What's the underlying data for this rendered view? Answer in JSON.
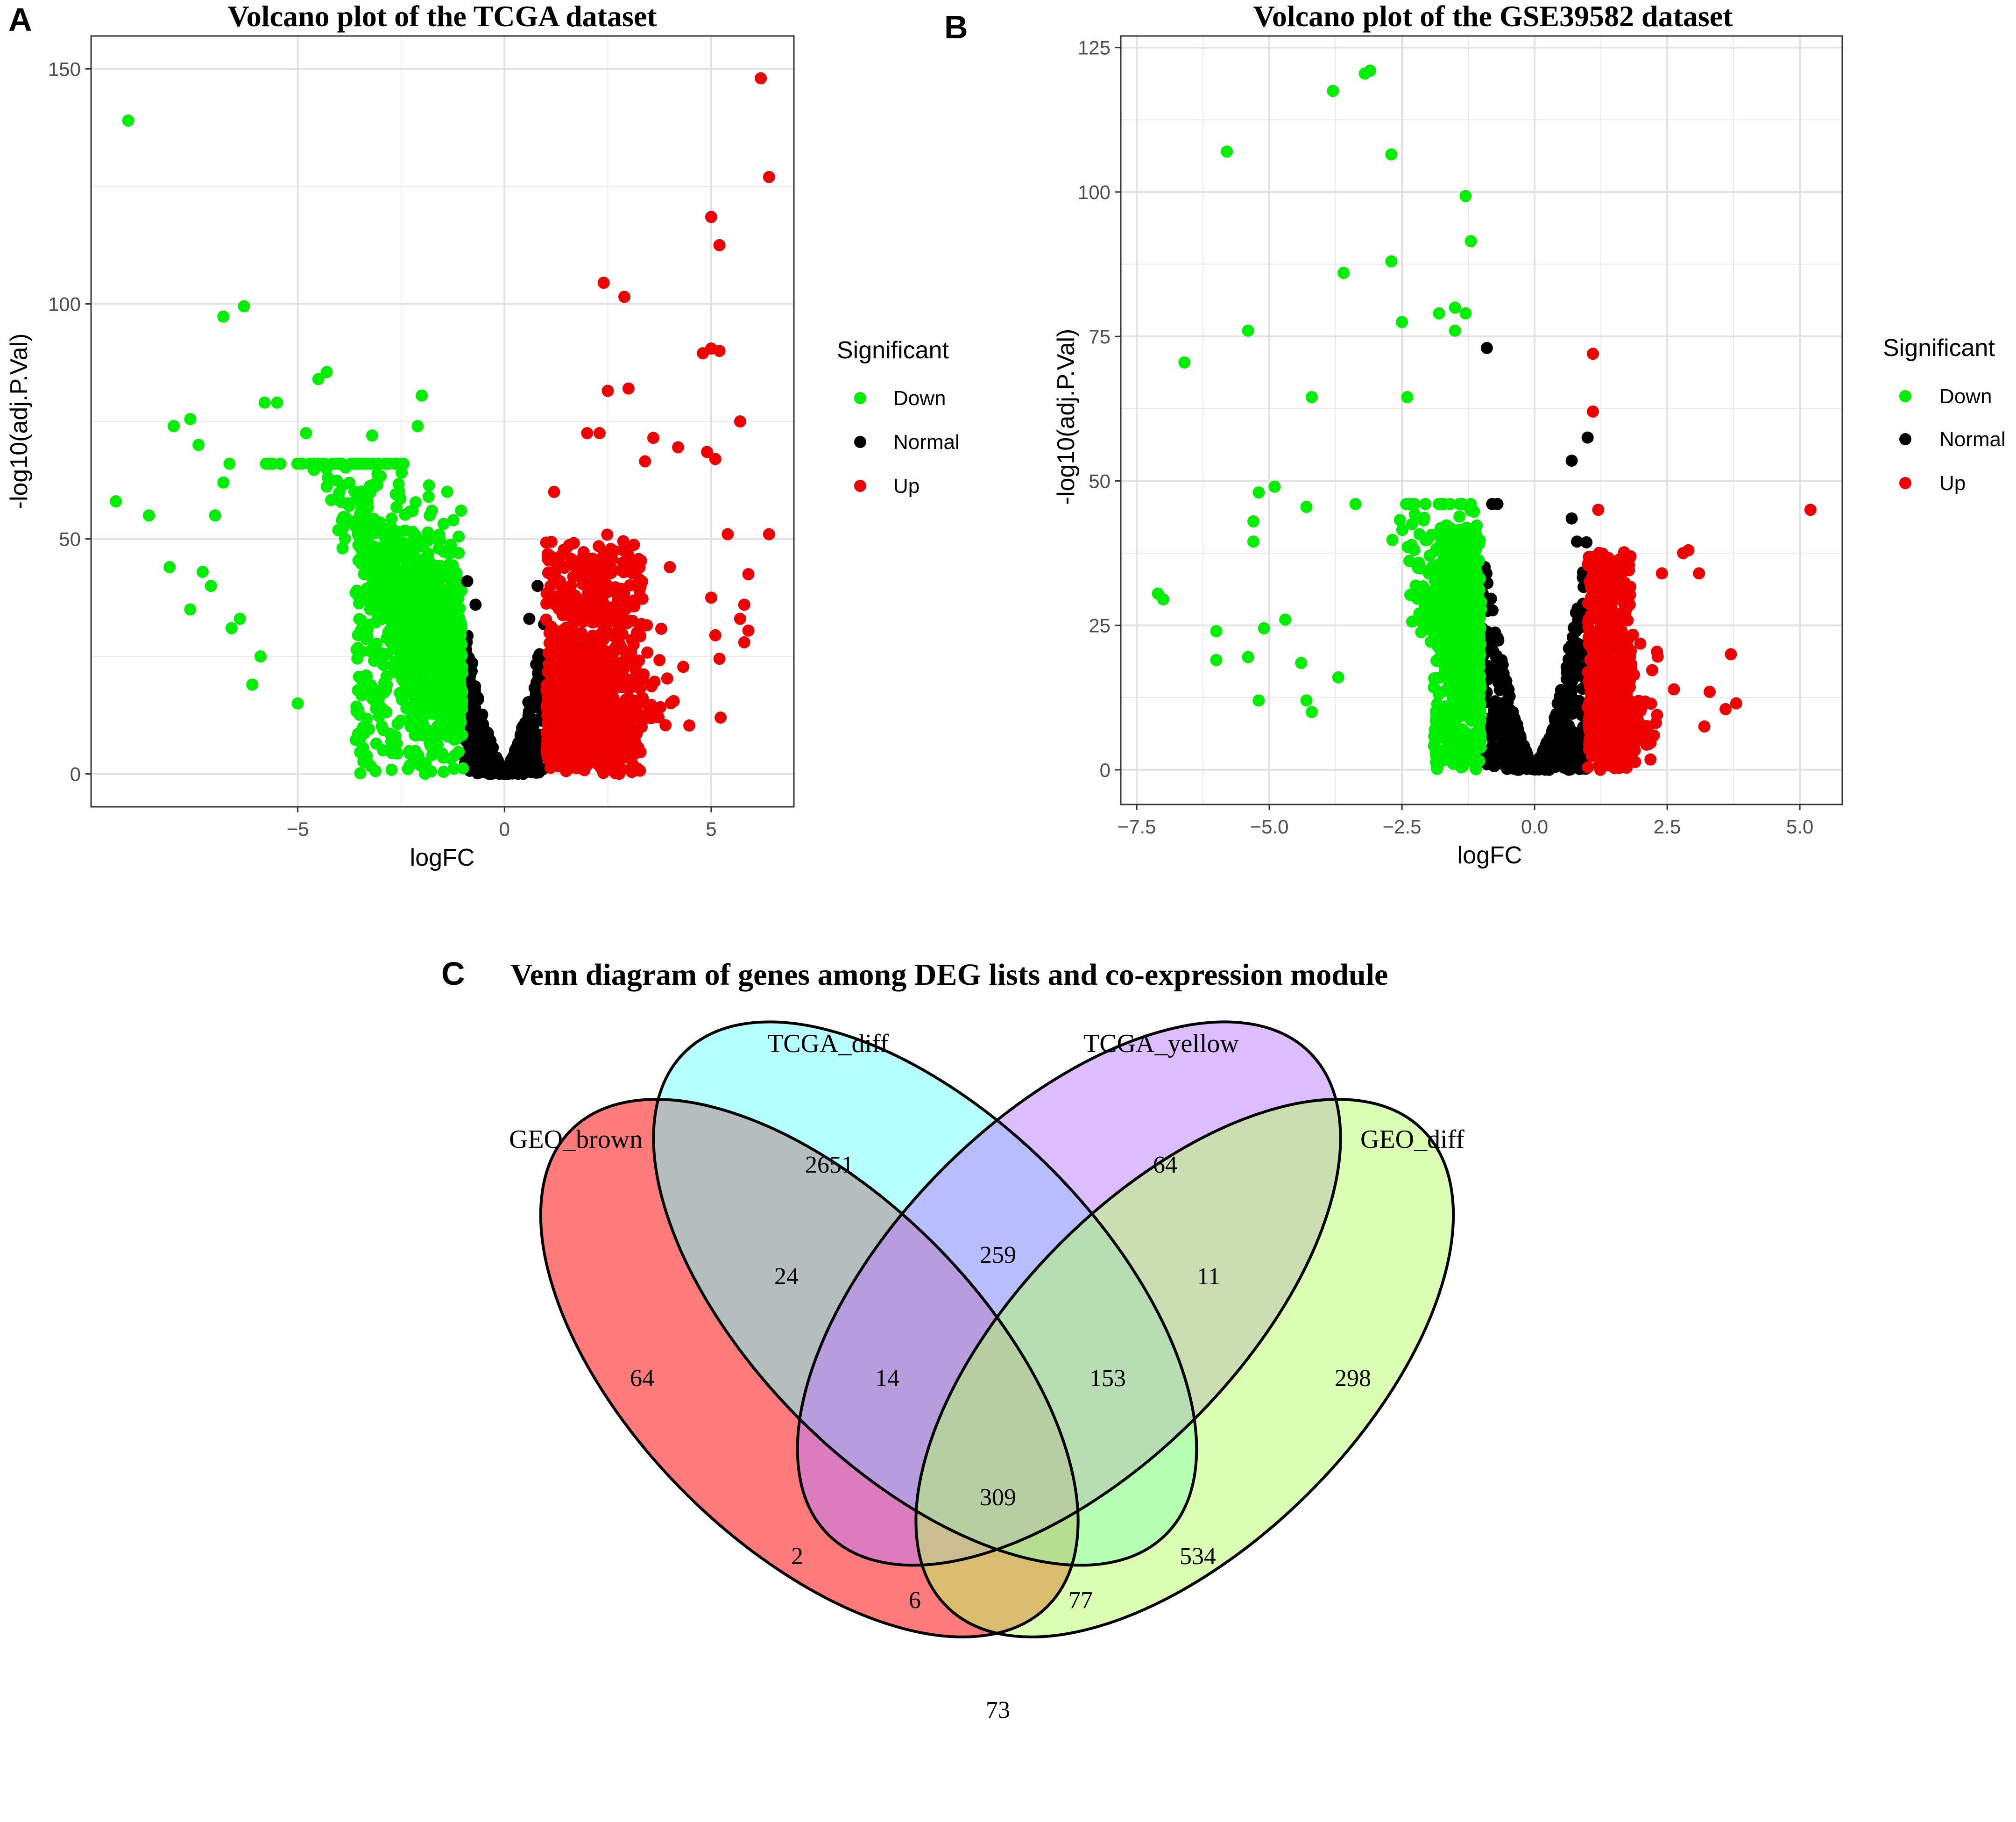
{
  "colors": {
    "down": "#00ee00",
    "normal": "#000000",
    "up": "#ee0000",
    "grid": "#ebebeb",
    "set_geo_brown": "#ff7b7b",
    "set_tcga_diff": "#6cffff",
    "set_tcga_yellow": "#b97bff",
    "set_geo_diff": "#b7ff66"
  },
  "panel_labels": [
    "A",
    "B",
    "C"
  ],
  "chart_data": [
    {
      "type": "scatter",
      "title": "Volcano plot of the TCGA dataset",
      "xlabel": "logFC",
      "ylabel": "-log10(adj.P.Val)",
      "xlim": [
        -10,
        7
      ],
      "ylim": [
        -7,
        157
      ],
      "xticks": [
        -5,
        0,
        5
      ],
      "xtick_labels": [
        "-5",
        "0",
        "5"
      ],
      "yticks": [
        0,
        50,
        100,
        150
      ],
      "ytick_labels": [
        "0",
        "50",
        "100",
        "150"
      ],
      "legend": {
        "title": "Significant",
        "entries": [
          "Down",
          "Normal",
          "Up"
        ]
      },
      "thresholds": {
        "logFC_down": -1,
        "logFC_up": 1
      },
      "extreme_points": {
        "down": [
          [
            -9.1,
            139
          ],
          [
            -6.3,
            99.5
          ],
          [
            -6.8,
            97.3
          ],
          [
            -4.3,
            85.5
          ],
          [
            -4.5,
            84
          ],
          [
            -5.8,
            79
          ],
          [
            -5.5,
            79
          ],
          [
            -7.6,
            75.5
          ],
          [
            -8,
            74
          ],
          [
            -9.4,
            58
          ],
          [
            -8.6,
            55
          ],
          [
            -7.4,
            70
          ],
          [
            -6.8,
            62
          ],
          [
            -7,
            55
          ],
          [
            -7.3,
            43
          ],
          [
            -7.6,
            35
          ],
          [
            -8.1,
            44
          ],
          [
            -6.4,
            33
          ],
          [
            -6.1,
            19
          ],
          [
            -5.9,
            25
          ],
          [
            -6.6,
            31
          ],
          [
            -7.1,
            40
          ],
          [
            -2,
            80.5
          ],
          [
            -2.1,
            74
          ],
          [
            -3.2,
            72
          ],
          [
            -4.8,
            72.5
          ],
          [
            -5,
            15
          ]
        ],
        "normal": [
          [
            -0.9,
            41
          ],
          [
            0.8,
            40
          ],
          [
            -0.7,
            36
          ],
          [
            0.6,
            33
          ]
        ],
        "up": [
          [
            6.2,
            148
          ],
          [
            6.4,
            127
          ],
          [
            5,
            118.5
          ],
          [
            5.2,
            112.5
          ],
          [
            2.4,
            104.5
          ],
          [
            2.9,
            101.5
          ],
          [
            5,
            90.5
          ],
          [
            5.2,
            90
          ],
          [
            4.8,
            89.5
          ],
          [
            3,
            82
          ],
          [
            2.5,
            81.5
          ],
          [
            1.2,
            60
          ],
          [
            2,
            72.5
          ],
          [
            2.3,
            72.5
          ],
          [
            3.6,
            71.5
          ],
          [
            4.2,
            69.5
          ],
          [
            4.9,
            68.5
          ],
          [
            5.1,
            67
          ],
          [
            3.4,
            66.5
          ],
          [
            5.7,
            75
          ],
          [
            6.4,
            51
          ],
          [
            5.4,
            51
          ],
          [
            4,
            44
          ],
          [
            5.9,
            42.5
          ],
          [
            5,
            37.5
          ],
          [
            5.8,
            36
          ],
          [
            5.7,
            33
          ],
          [
            5.9,
            30.5
          ],
          [
            5.1,
            29.5
          ],
          [
            5.8,
            28
          ],
          [
            5.2,
            24.5
          ]
        ]
      }
    },
    {
      "type": "scatter",
      "title": "Volcano plot of the GSE39582 dataset",
      "xlabel": "logFC",
      "ylabel": "-log10(adj.P.Val)",
      "xlim": [
        -7.8,
        5.8
      ],
      "ylim": [
        -6,
        127
      ],
      "xticks": [
        -7.5,
        -5,
        -2.5,
        0,
        2.5,
        5
      ],
      "xtick_labels": [
        "-7.5",
        "-5.0",
        "-2.5",
        "0.0",
        "2.5",
        "5.0"
      ],
      "yticks": [
        0,
        25,
        50,
        75,
        100,
        125
      ],
      "ytick_labels": [
        "0",
        "25",
        "50",
        "75",
        "100",
        "125"
      ],
      "legend": {
        "title": "Significant",
        "entries": [
          "Down",
          "Normal",
          "Up"
        ]
      },
      "thresholds": {
        "logFC_down": -1,
        "logFC_up": 1
      },
      "extreme_points": {
        "down": [
          [
            -3.1,
            121
          ],
          [
            -3.2,
            120.5
          ],
          [
            -3.8,
            117.5
          ],
          [
            -5.8,
            107
          ],
          [
            -2.7,
            106.5
          ],
          [
            -1.3,
            99.3
          ],
          [
            -1.2,
            91.5
          ],
          [
            -3.6,
            86
          ],
          [
            -2.7,
            88
          ],
          [
            -1.5,
            80
          ],
          [
            -1.8,
            79
          ],
          [
            -1.3,
            79
          ],
          [
            -2.5,
            77.5
          ],
          [
            -1.5,
            76
          ],
          [
            -5.4,
            76
          ],
          [
            -6.6,
            70.5
          ],
          [
            -4.2,
            64.5
          ],
          [
            -2.4,
            64.5
          ],
          [
            -5.2,
            48
          ],
          [
            -4.9,
            49
          ],
          [
            -5.3,
            43
          ],
          [
            -4.3,
            45.5
          ],
          [
            -5.3,
            39.5
          ],
          [
            -7.1,
            30.5
          ],
          [
            -7,
            29.5
          ],
          [
            -6,
            24
          ],
          [
            -5.1,
            24.5
          ],
          [
            -5.4,
            19.5
          ],
          [
            -6,
            19
          ],
          [
            -5.2,
            12
          ],
          [
            -4.3,
            12
          ],
          [
            -4.2,
            10
          ],
          [
            -4.4,
            18.5
          ],
          [
            -3.7,
            16
          ],
          [
            -4.7,
            26
          ]
        ],
        "normal": [
          [
            -0.9,
            73
          ],
          [
            -0.7,
            46
          ],
          [
            -0.8,
            46
          ],
          [
            0.7,
            53.5
          ],
          [
            1,
            57.5
          ],
          [
            0.8,
            39.5
          ],
          [
            0.7,
            43.5
          ]
        ],
        "up": [
          [
            1.1,
            72
          ],
          [
            1.1,
            62
          ],
          [
            5.2,
            45
          ],
          [
            1.2,
            45
          ],
          [
            3.7,
            20
          ],
          [
            3.8,
            11.5
          ],
          [
            3.6,
            10.5
          ],
          [
            3.3,
            13.5
          ],
          [
            3.2,
            7.5
          ],
          [
            2.9,
            38
          ],
          [
            2.8,
            37.5
          ],
          [
            3.1,
            34
          ],
          [
            2.4,
            34
          ]
        ]
      }
    }
  ],
  "venn": {
    "title": "Venn diagram of genes among DEG lists and co-expression module",
    "sets": [
      "GEO_brown",
      "TCGA_diff",
      "TCGA_yellow",
      "GEO_diff"
    ],
    "regions": [
      {
        "sets": [
          "TCGA_diff"
        ],
        "count": "2651"
      },
      {
        "sets": [
          "TCGA_yellow"
        ],
        "count": "64"
      },
      {
        "sets": [
          "GEO_brown"
        ],
        "count": "64"
      },
      {
        "sets": [
          "GEO_diff"
        ],
        "count": "298"
      },
      {
        "sets": [
          "TCGA_diff",
          "TCGA_yellow"
        ],
        "count": "259"
      },
      {
        "sets": [
          "GEO_brown",
          "TCGA_diff"
        ],
        "count": "24"
      },
      {
        "sets": [
          "TCGA_yellow",
          "GEO_diff"
        ],
        "count": "11"
      },
      {
        "sets": [
          "GEO_brown",
          "TCGA_diff",
          "TCGA_yellow"
        ],
        "count": "14"
      },
      {
        "sets": [
          "TCGA_diff",
          "TCGA_yellow",
          "GEO_diff"
        ],
        "count": "153"
      },
      {
        "sets": [
          "GEO_brown",
          "TCGA_diff",
          "TCGA_yellow",
          "GEO_diff"
        ],
        "count": "309"
      },
      {
        "sets": [
          "GEO_brown",
          "TCGA_yellow"
        ],
        "count": "2"
      },
      {
        "sets": [
          "TCGA_diff",
          "GEO_diff"
        ],
        "count": "534"
      },
      {
        "sets": [
          "GEO_brown",
          "TCGA_yellow",
          "GEO_diff"
        ],
        "count": "6"
      },
      {
        "sets": [
          "GEO_brown",
          "TCGA_diff",
          "GEO_diff"
        ],
        "count": "77"
      },
      {
        "sets": [
          "GEO_brown",
          "GEO_diff"
        ],
        "count": "73"
      }
    ]
  }
}
